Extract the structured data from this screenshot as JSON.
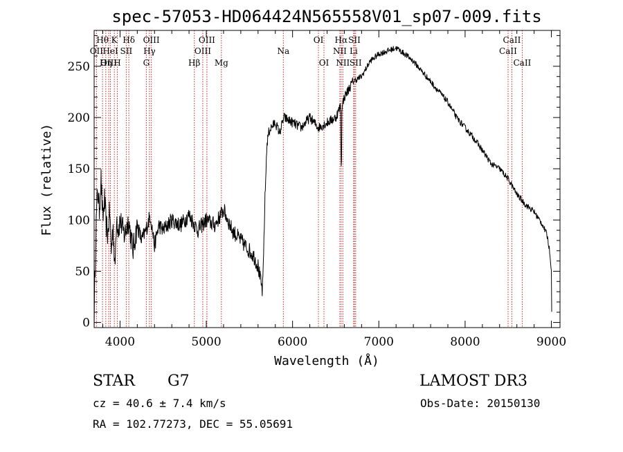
{
  "chart_data": {
    "type": "line",
    "title": "spec-57053-HD064424N565558V01_sp07-009.fits",
    "xlabel": "Wavelength (Å)",
    "ylabel": "Flux (relative)",
    "xlim": [
      3700,
      9100
    ],
    "ylim": [
      -5,
      285
    ],
    "xticks": [
      4000,
      5000,
      6000,
      7000,
      8000,
      9000
    ],
    "yticks": [
      0,
      50,
      100,
      150,
      200,
      250
    ],
    "grid": false,
    "series": [
      {
        "name": "flux",
        "x": [
          3700,
          3720,
          3740,
          3760,
          3780,
          3800,
          3820,
          3840,
          3860,
          3880,
          3900,
          3920,
          3940,
          3960,
          3980,
          4000,
          4050,
          4100,
          4150,
          4200,
          4250,
          4300,
          4350,
          4400,
          4450,
          4500,
          4600,
          4700,
          4800,
          4900,
          5000,
          5100,
          5200,
          5300,
          5400,
          5500,
          5550,
          5600,
          5630,
          5650,
          5660,
          5670,
          5680,
          5700,
          5720,
          5750,
          5800,
          5850,
          5900,
          6000,
          6100,
          6200,
          6300,
          6400,
          6500,
          6550,
          6562,
          6565,
          6570,
          6600,
          6700,
          6800,
          6900,
          7000,
          7100,
          7200,
          7300,
          7400,
          7500,
          7600,
          7700,
          7800,
          7900,
          8000,
          8100,
          8200,
          8300,
          8400,
          8500,
          8600,
          8700,
          8800,
          8900,
          8950,
          8980,
          9000,
          9005
        ],
        "y": [
          5,
          90,
          130,
          110,
          140,
          100,
          120,
          95,
          85,
          110,
          70,
          95,
          50,
          105,
          90,
          100,
          85,
          100,
          70,
          95,
          80,
          90,
          105,
          75,
          95,
          90,
          100,
          95,
          105,
          90,
          100,
          95,
          110,
          90,
          80,
          70,
          65,
          55,
          40,
          30,
          50,
          90,
          120,
          170,
          185,
          190,
          195,
          185,
          200,
          195,
          190,
          200,
          190,
          195,
          200,
          210,
          215,
          170,
          210,
          220,
          235,
          240,
          255,
          262,
          265,
          268,
          262,
          255,
          245,
          235,
          225,
          215,
          200,
          190,
          180,
          168,
          155,
          150,
          140,
          125,
          115,
          108,
          95,
          85,
          70,
          50,
          0
        ]
      }
    ],
    "spectral_lines": [
      {
        "label": "Hθ",
        "wavelength": 3797,
        "row": 1
      },
      {
        "label": "OII",
        "wavelength": 3727,
        "row": 2
      },
      {
        "label": "OIII",
        "wavelength": 3869,
        "row": 3
      },
      {
        "label": "K",
        "wavelength": 3934,
        "row": 1
      },
      {
        "label": "HeI",
        "wavelength": 3889,
        "row": 2
      },
      {
        "label": "Hη",
        "wavelength": 3835,
        "row": 3
      },
      {
        "label": "H",
        "wavelength": 3969,
        "row": 3
      },
      {
        "label": "SII",
        "wavelength": 4072,
        "row": 2
      },
      {
        "label": "Hδ",
        "wavelength": 4102,
        "row": 1
      },
      {
        "label": "OIII",
        "wavelength": 4363,
        "row": 1
      },
      {
        "label": "Hγ",
        "wavelength": 4341,
        "row": 2
      },
      {
        "label": "G",
        "wavelength": 4305,
        "row": 3
      },
      {
        "label": "Hβ",
        "wavelength": 4861,
        "row": 3
      },
      {
        "label": "OIII",
        "wavelength": 5007,
        "row": 1
      },
      {
        "label": "OIII",
        "wavelength": 4959,
        "row": 2
      },
      {
        "label": "Mg",
        "wavelength": 5175,
        "row": 3
      },
      {
        "label": "Na",
        "wavelength": 5893,
        "row": 2
      },
      {
        "label": "OI",
        "wavelength": 6300,
        "row": 1
      },
      {
        "label": "OI",
        "wavelength": 6364,
        "row": 3
      },
      {
        "label": "Hα",
        "wavelength": 6563,
        "row": 1
      },
      {
        "label": "NII",
        "wavelength": 6548,
        "row": 2
      },
      {
        "label": "NII",
        "wavelength": 6583,
        "row": 3
      },
      {
        "label": "SII",
        "wavelength": 6717,
        "row": 1
      },
      {
        "label": "Li",
        "wavelength": 6708,
        "row": 2
      },
      {
        "label": "SII",
        "wavelength": 6731,
        "row": 3
      },
      {
        "label": "CaII",
        "wavelength": 8542,
        "row": 1
      },
      {
        "label": "CaII",
        "wavelength": 8498,
        "row": 2
      },
      {
        "label": "CaII",
        "wavelength": 8662,
        "row": 3
      }
    ],
    "line_color": "#cc2222"
  },
  "footer": {
    "object_class": "STAR",
    "subclass": "G7",
    "survey": "LAMOST DR3",
    "redshift": "cz = 40.6 ± 7.4 km/s",
    "obs_date": "Obs-Date: 20150130",
    "coords": "RA = 102.77273, DEC =  55.05691"
  }
}
